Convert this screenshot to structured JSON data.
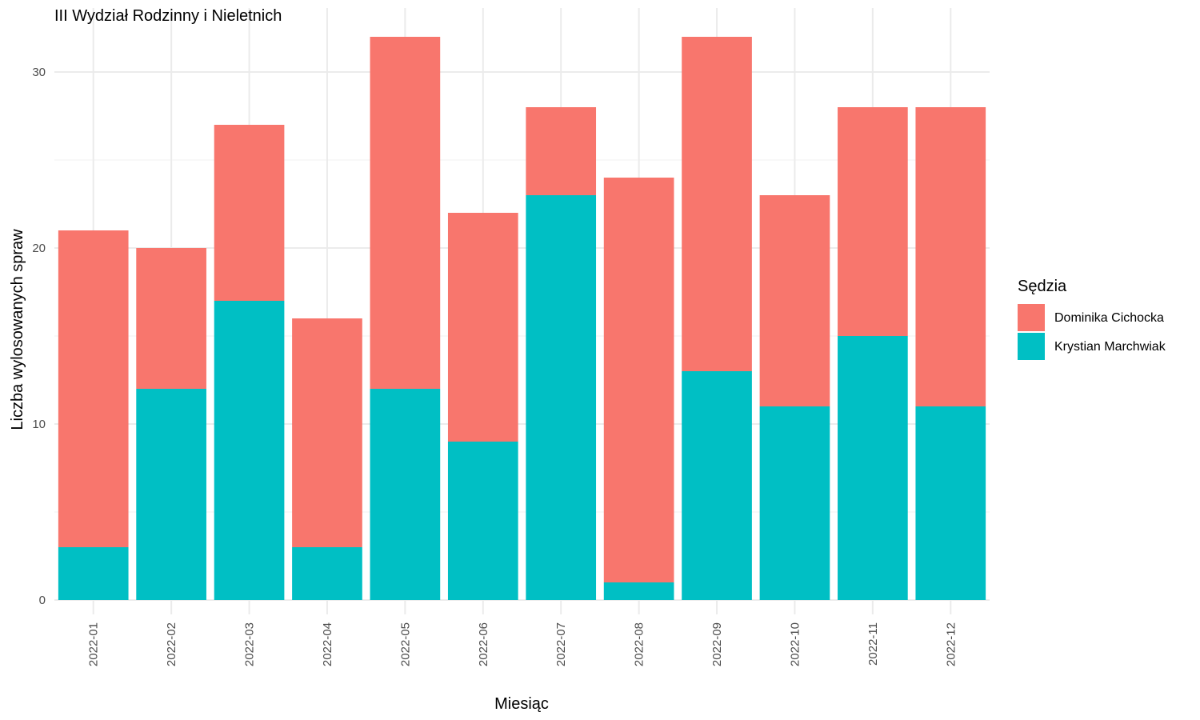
{
  "chart_data": {
    "type": "bar",
    "stacked": true,
    "title": "III Wydział Rodzinny i Nieletnich",
    "xlabel": "Miesiąc",
    "ylabel": "Liczba wylosowanych spraw",
    "categories": [
      "2022-01",
      "2022-02",
      "2022-03",
      "2022-04",
      "2022-05",
      "2022-06",
      "2022-07",
      "2022-08",
      "2022-09",
      "2022-10",
      "2022-11",
      "2022-12"
    ],
    "series": [
      {
        "name": "Krystian Marchwiak",
        "color": "#00BFC4",
        "values": [
          3,
          12,
          17,
          3,
          12,
          9,
          23,
          1,
          13,
          11,
          15,
          11
        ]
      },
      {
        "name": "Dominika Cichocka",
        "color": "#F8766D",
        "values": [
          18,
          8,
          10,
          13,
          20,
          13,
          5,
          23,
          19,
          12,
          13,
          17
        ]
      }
    ],
    "ylim": [
      0,
      32
    ],
    "yticks": [
      0,
      10,
      20,
      30
    ],
    "grid": true,
    "legend": {
      "title": "Sędzia",
      "position": "right",
      "entries": [
        "Dominika Cichocka",
        "Krystian Marchwiak"
      ]
    }
  }
}
